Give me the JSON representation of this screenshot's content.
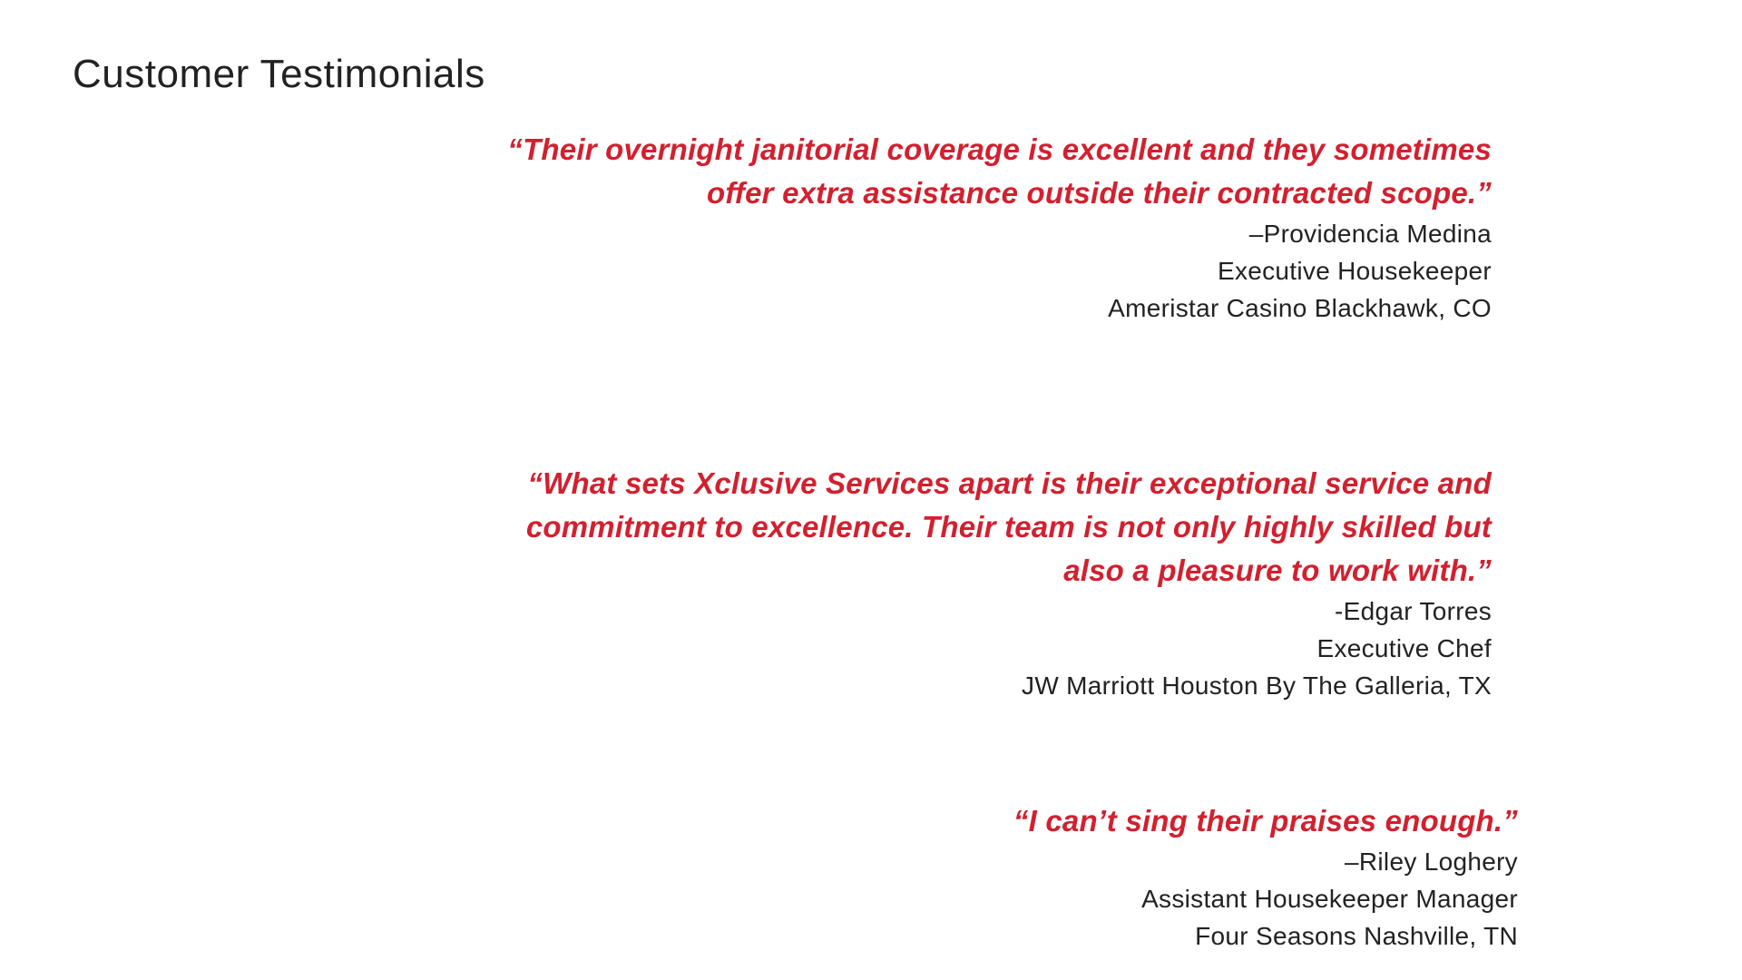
{
  "page": {
    "title": "Customer Testimonials",
    "background_color": "#ffffff"
  },
  "colors": {
    "accent_red": "#d2202f",
    "text_dark": "#222222"
  },
  "testimonials": [
    {
      "quote_lines": [
        "“Their overnight janitorial coverage is excellent and they sometimes",
        "offer extra assistance outside their contracted scope.”"
      ],
      "attribution": {
        "name": "–Providencia Medina",
        "title": "Executive Housekeeper",
        "company": "Ameristar Casino Blackhawk, CO"
      }
    },
    {
      "quote_lines": [
        "“What sets Xclusive Services apart is their exceptional service and",
        "commitment to excellence. Their team is not only highly skilled but",
        "also a pleasure to work with.”"
      ],
      "attribution": {
        "name": "-Edgar Torres",
        "title": "Executive Chef",
        "company": "JW Marriott Houston By The Galleria, TX"
      }
    },
    {
      "quote_lines": [
        "“I can’t sing their praises enough.”"
      ],
      "attribution": {
        "name": "–Riley Loghery",
        "title": "Assistant Housekeeper Manager",
        "company": "Four Seasons Nashville, TN"
      }
    }
  ]
}
